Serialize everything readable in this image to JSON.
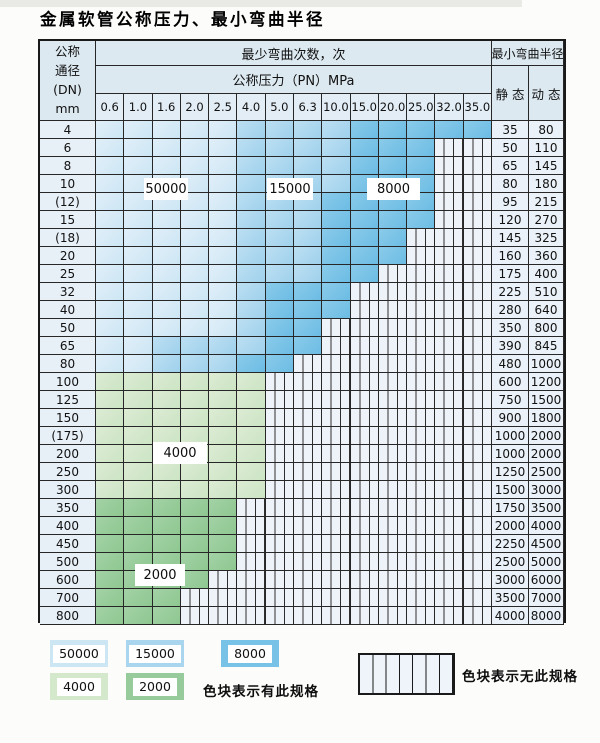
{
  "title": "金属软管公称压力、最小弯曲半径",
  "table": {
    "corner_lines": [
      "公称",
      "通径",
      "(DN)",
      "mm"
    ],
    "bend_cycles_header": "最少弯曲次数，次",
    "pressure_header": "公称压力（PN）MPa",
    "radius_header": "最小弯曲半径",
    "static_header": "静 态",
    "dynamic_header": "动 态",
    "pressures": [
      "0.6",
      "1.0",
      "1.6",
      "2.0",
      "2.5",
      "4.0",
      "5.0",
      "6.3",
      "10.0",
      "15.0",
      "20.0",
      "25.0",
      "32.0",
      "35.0"
    ],
    "rows": [
      {
        "dn": "4",
        "static": "35",
        "dynamic": "80",
        "cells": "aaaaabbbbccccc"
      },
      {
        "dn": "6",
        "static": "50",
        "dynamic": "110",
        "cells": "aaaaabbbbcccss"
      },
      {
        "dn": "8",
        "static": "65",
        "dynamic": "145",
        "cells": "aaaaabbbbcccss"
      },
      {
        "dn": "10",
        "static": "80",
        "dynamic": "180",
        "cells": "aaaaabbbbcccss"
      },
      {
        "dn": "(12)",
        "static": "95",
        "dynamic": "215",
        "cells": "aaaaabbbccccss"
      },
      {
        "dn": "15",
        "static": "120",
        "dynamic": "270",
        "cells": "aaaaabbbccccss"
      },
      {
        "dn": "(18)",
        "static": "145",
        "dynamic": "325",
        "cells": "aaaaabbbcccsss"
      },
      {
        "dn": "20",
        "static": "160",
        "dynamic": "360",
        "cells": "aaaaabbbcccsss"
      },
      {
        "dn": "25",
        "static": "175",
        "dynamic": "400",
        "cells": "aaaaabbbccssss"
      },
      {
        "dn": "32",
        "static": "225",
        "dynamic": "510",
        "cells": "aaaaabcccsssss"
      },
      {
        "dn": "40",
        "static": "280",
        "dynamic": "640",
        "cells": "aaaaabcccsssss"
      },
      {
        "dn": "50",
        "static": "350",
        "dynamic": "800",
        "cells": "aaaaabccssssss"
      },
      {
        "dn": "65",
        "static": "390",
        "dynamic": "845",
        "cells": "aabbbbccssssss"
      },
      {
        "dn": "80",
        "static": "480",
        "dynamic": "1000",
        "cells": "aabbbccsssssss"
      },
      {
        "dn": "100",
        "static": "600",
        "dynamic": "1200",
        "cells": "ddddddssssssss"
      },
      {
        "dn": "125",
        "static": "750",
        "dynamic": "1500",
        "cells": "ddddddssssssss"
      },
      {
        "dn": "150",
        "static": "900",
        "dynamic": "1800",
        "cells": "ddddddssssssss"
      },
      {
        "dn": "(175)",
        "static": "1000",
        "dynamic": "2000",
        "cells": "ddddddssssssss"
      },
      {
        "dn": "200",
        "static": "1000",
        "dynamic": "2000",
        "cells": "ddddddssssssss"
      },
      {
        "dn": "250",
        "static": "1250",
        "dynamic": "2500",
        "cells": "ddddddssssssss"
      },
      {
        "dn": "300",
        "static": "1500",
        "dynamic": "3000",
        "cells": "ddddddssssssss"
      },
      {
        "dn": "350",
        "static": "1750",
        "dynamic": "3500",
        "cells": "eeeeesssssssss"
      },
      {
        "dn": "400",
        "static": "2000",
        "dynamic": "4000",
        "cells": "eeeeesssssssss"
      },
      {
        "dn": "450",
        "static": "2250",
        "dynamic": "4500",
        "cells": "eeeeesssssssss"
      },
      {
        "dn": "500",
        "static": "2500",
        "dynamic": "5000",
        "cells": "eeeeesssssssss"
      },
      {
        "dn": "600",
        "static": "3000",
        "dynamic": "6000",
        "cells": "eeeessssssssss"
      },
      {
        "dn": "700",
        "static": "3500",
        "dynamic": "7000",
        "cells": "eeesssssssssss"
      },
      {
        "dn": "800",
        "static": "4000",
        "dynamic": "8000",
        "cells": "eeesssssssssss"
      }
    ]
  },
  "zones": {
    "a": {
      "value": "50000",
      "color": "#cde6f4"
    },
    "b": {
      "value": "15000",
      "color": "#a9d6ee"
    },
    "c": {
      "value": "8000",
      "color": "#77c2e6"
    },
    "d": {
      "value": "4000",
      "color": "#d4e8cc"
    },
    "e": {
      "value": "2000",
      "color": "#97cb9b"
    }
  },
  "overlays": {
    "a": "50000",
    "b": "15000",
    "c": "8000",
    "d": "4000",
    "e": "2000"
  },
  "legend": {
    "items": [
      {
        "value": "50000",
        "zone": "a"
      },
      {
        "value": "15000",
        "zone": "b"
      },
      {
        "value": "8000",
        "zone": "c"
      },
      {
        "value": "4000",
        "zone": "d"
      },
      {
        "value": "2000",
        "zone": "e"
      }
    ],
    "present_note": "色块表示有此规格",
    "absent_note": "色块表示无此规格"
  }
}
